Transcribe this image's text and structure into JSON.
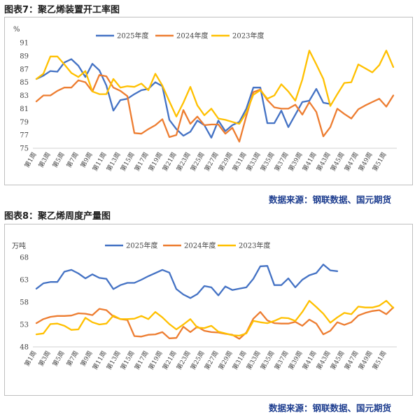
{
  "figures": [
    {
      "title": "图表7：聚乙烯装置开工率图",
      "source": "数据来源：钢联数据、国元期货"
    },
    {
      "title": "图表8：聚乙烯周度产量图",
      "source": "数据来源：钢联数据、国元期货"
    }
  ],
  "colors": {
    "s2025": "#4472C4",
    "s2024": "#ED7D31",
    "s2023": "#FFC000"
  },
  "chart_data": [
    {
      "type": "line",
      "unit": "%",
      "ylim": [
        75,
        91
      ],
      "yticks": [
        75,
        77,
        79,
        81,
        83,
        85,
        87,
        89,
        91
      ],
      "x_label_prefix": "第",
      "x_label_suffix": "周",
      "x_label_step": 2,
      "x_count": 52,
      "grid": false,
      "legend": "top",
      "series": [
        {
          "name": "2025年度",
          "values": [
            85.5,
            86.0,
            86.7,
            86.6,
            88.0,
            88.5,
            87.5,
            85.8,
            87.8,
            86.8,
            84.5,
            80.7,
            82.3,
            82.5,
            83.2,
            83.8,
            84.0,
            85.0,
            84.4,
            79.3,
            77.9,
            76.9,
            77.5,
            79.2,
            78.5,
            76.6,
            79.2,
            77.6,
            78.5,
            79.0,
            81.0,
            84.2,
            84.2,
            78.8,
            78.8,
            80.7,
            78.2,
            80.1,
            82.0,
            82.2,
            84.0,
            81.9,
            81.7
          ]
        },
        {
          "name": "2024年度",
          "values": [
            82.1,
            83.0,
            83.0,
            83.7,
            84.2,
            84.2,
            85.3,
            85.0,
            83.6,
            86.1,
            85.9,
            84.2,
            83.7,
            82.9,
            77.3,
            77.2,
            77.9,
            78.5,
            79.4,
            76.7,
            77.0,
            80.8,
            78.7,
            79.8,
            78.5,
            78.6,
            78.6,
            77.2,
            78.1,
            76.0,
            79.9,
            83.5,
            83.9,
            82.3,
            81.2,
            81.0,
            81.0,
            81.6,
            80.1,
            82.0,
            80.5,
            76.8,
            78.2,
            81.0,
            80.2,
            79.5,
            80.9,
            81.5,
            82.0,
            82.5,
            81.3,
            83.0
          ]
        },
        {
          "name": "2023年度",
          "values": [
            85.5,
            86.3,
            88.9,
            88.9,
            87.7,
            86.4,
            85.8,
            86.7,
            83.6,
            83.2,
            83.2,
            85.5,
            84.2,
            84.4,
            84.3,
            84.8,
            83.8,
            86.3,
            84.5,
            82.1,
            79.8,
            81.9,
            84.3,
            81.5,
            80.0,
            81.0,
            79.5,
            79.3,
            79.0,
            78.7,
            80.4,
            83.1,
            83.8,
            82.5,
            83.0,
            84.7,
            83.6,
            82.2,
            85.4,
            89.8,
            87.7,
            85.5,
            81.4,
            83.2,
            84.9,
            85.0,
            87.7,
            87.1,
            86.5,
            87.6,
            89.8,
            87.3
          ]
        }
      ]
    },
    {
      "type": "line",
      "unit": "万吨",
      "ylim": [
        48,
        68
      ],
      "yticks": [
        48,
        53,
        58,
        63,
        68
      ],
      "x_label_prefix": "第",
      "x_label_suffix": "周",
      "x_label_step": 2,
      "x_count": 52,
      "grid": false,
      "legend": "top",
      "series": [
        {
          "name": "2025年度",
          "values": [
            61.0,
            62.2,
            62.5,
            62.5,
            64.8,
            65.2,
            64.4,
            63.3,
            64.2,
            63.4,
            63.2,
            60.9,
            61.8,
            62.3,
            62.3,
            63.0,
            63.8,
            64.5,
            65.2,
            64.6,
            60.9,
            59.7,
            58.9,
            59.8,
            61.6,
            61.3,
            59.5,
            61.5,
            60.7,
            61.0,
            61.3,
            63.2,
            66.0,
            66.1,
            61.8,
            61.8,
            63.3,
            61.3,
            63.0,
            64.0,
            64.5,
            66.4,
            65.1,
            64.9
          ]
        },
        {
          "name": "2024年度",
          "values": [
            53.3,
            54.2,
            54.7,
            54.9,
            54.9,
            55.0,
            55.5,
            55.4,
            55.1,
            56.5,
            56.2,
            54.8,
            54.2,
            54.0,
            50.4,
            50.3,
            50.7,
            50.8,
            51.3,
            49.9,
            50.0,
            52.5,
            51.3,
            52.5,
            51.6,
            51.3,
            51.2,
            50.9,
            50.7,
            49.8,
            51.2,
            54.3,
            55.8,
            53.9,
            53.3,
            53.2,
            53.2,
            53.6,
            52.7,
            54.1,
            53.2,
            50.8,
            51.6,
            53.5,
            52.9,
            53.5,
            55.0,
            55.6,
            56.0,
            56.2,
            55.3,
            56.8
          ]
        },
        {
          "name": "2023年度",
          "values": [
            50.8,
            51.0,
            53.1,
            53.2,
            52.7,
            51.8,
            51.9,
            54.5,
            53.5,
            53.0,
            53.2,
            55.0,
            54.2,
            54.2,
            54.3,
            54.9,
            54.2,
            55.8,
            54.6,
            53.1,
            51.9,
            53.0,
            54.2,
            52.3,
            52.2,
            52.7,
            51.4,
            51.0,
            50.6,
            50.5,
            51.0,
            53.8,
            53.5,
            53.3,
            53.8,
            54.5,
            54.4,
            53.8,
            55.8,
            58.3,
            56.9,
            55.4,
            53.4,
            54.6,
            55.6,
            55.3,
            57.0,
            56.8,
            56.8,
            57.2,
            58.3,
            56.7
          ]
        }
      ]
    }
  ]
}
